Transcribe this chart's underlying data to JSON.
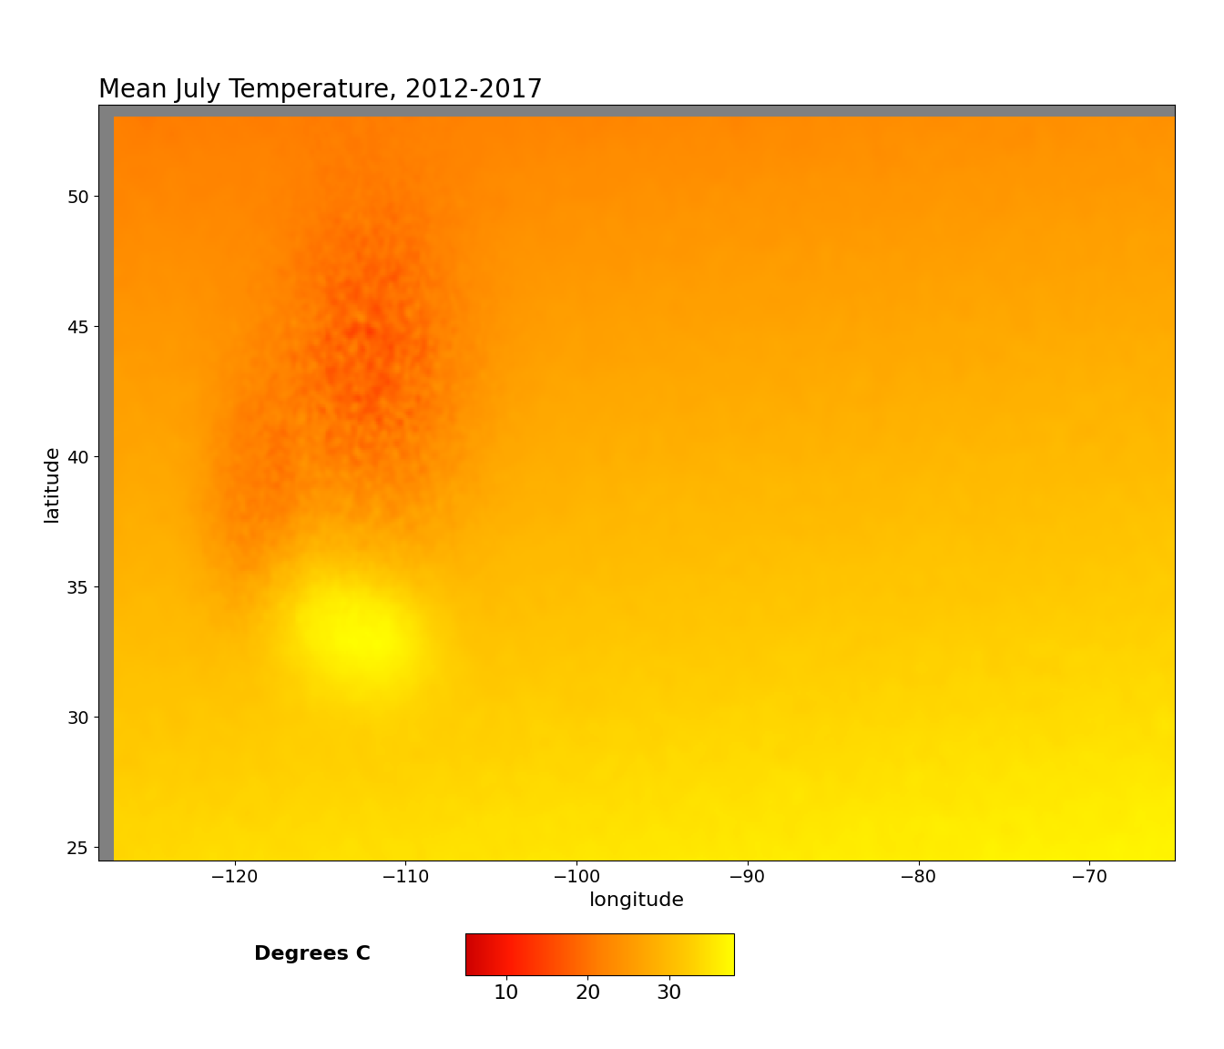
{
  "title": "Mean July Temperature, 2012-2017",
  "xlabel": "longitude",
  "ylabel": "latitude",
  "lon_min": -127,
  "lon_max": -65,
  "lat_min": 24,
  "lat_max": 53,
  "xlim": [
    -128,
    -65
  ],
  "ylim": [
    24.5,
    53.5
  ],
  "xticks": [
    -120,
    -110,
    -100,
    -90,
    -80,
    -70
  ],
  "yticks": [
    25,
    30,
    35,
    40,
    45,
    50
  ],
  "background_color": "#808080",
  "colorbar_label": "Degrees C",
  "colorbar_ticks": [
    10,
    20,
    30
  ],
  "vmin": 5,
  "vmax": 38,
  "title_fontsize": 20,
  "label_fontsize": 16,
  "tick_fontsize": 14,
  "colorbar_fontsize": 16,
  "figure_bg": "#ffffff"
}
